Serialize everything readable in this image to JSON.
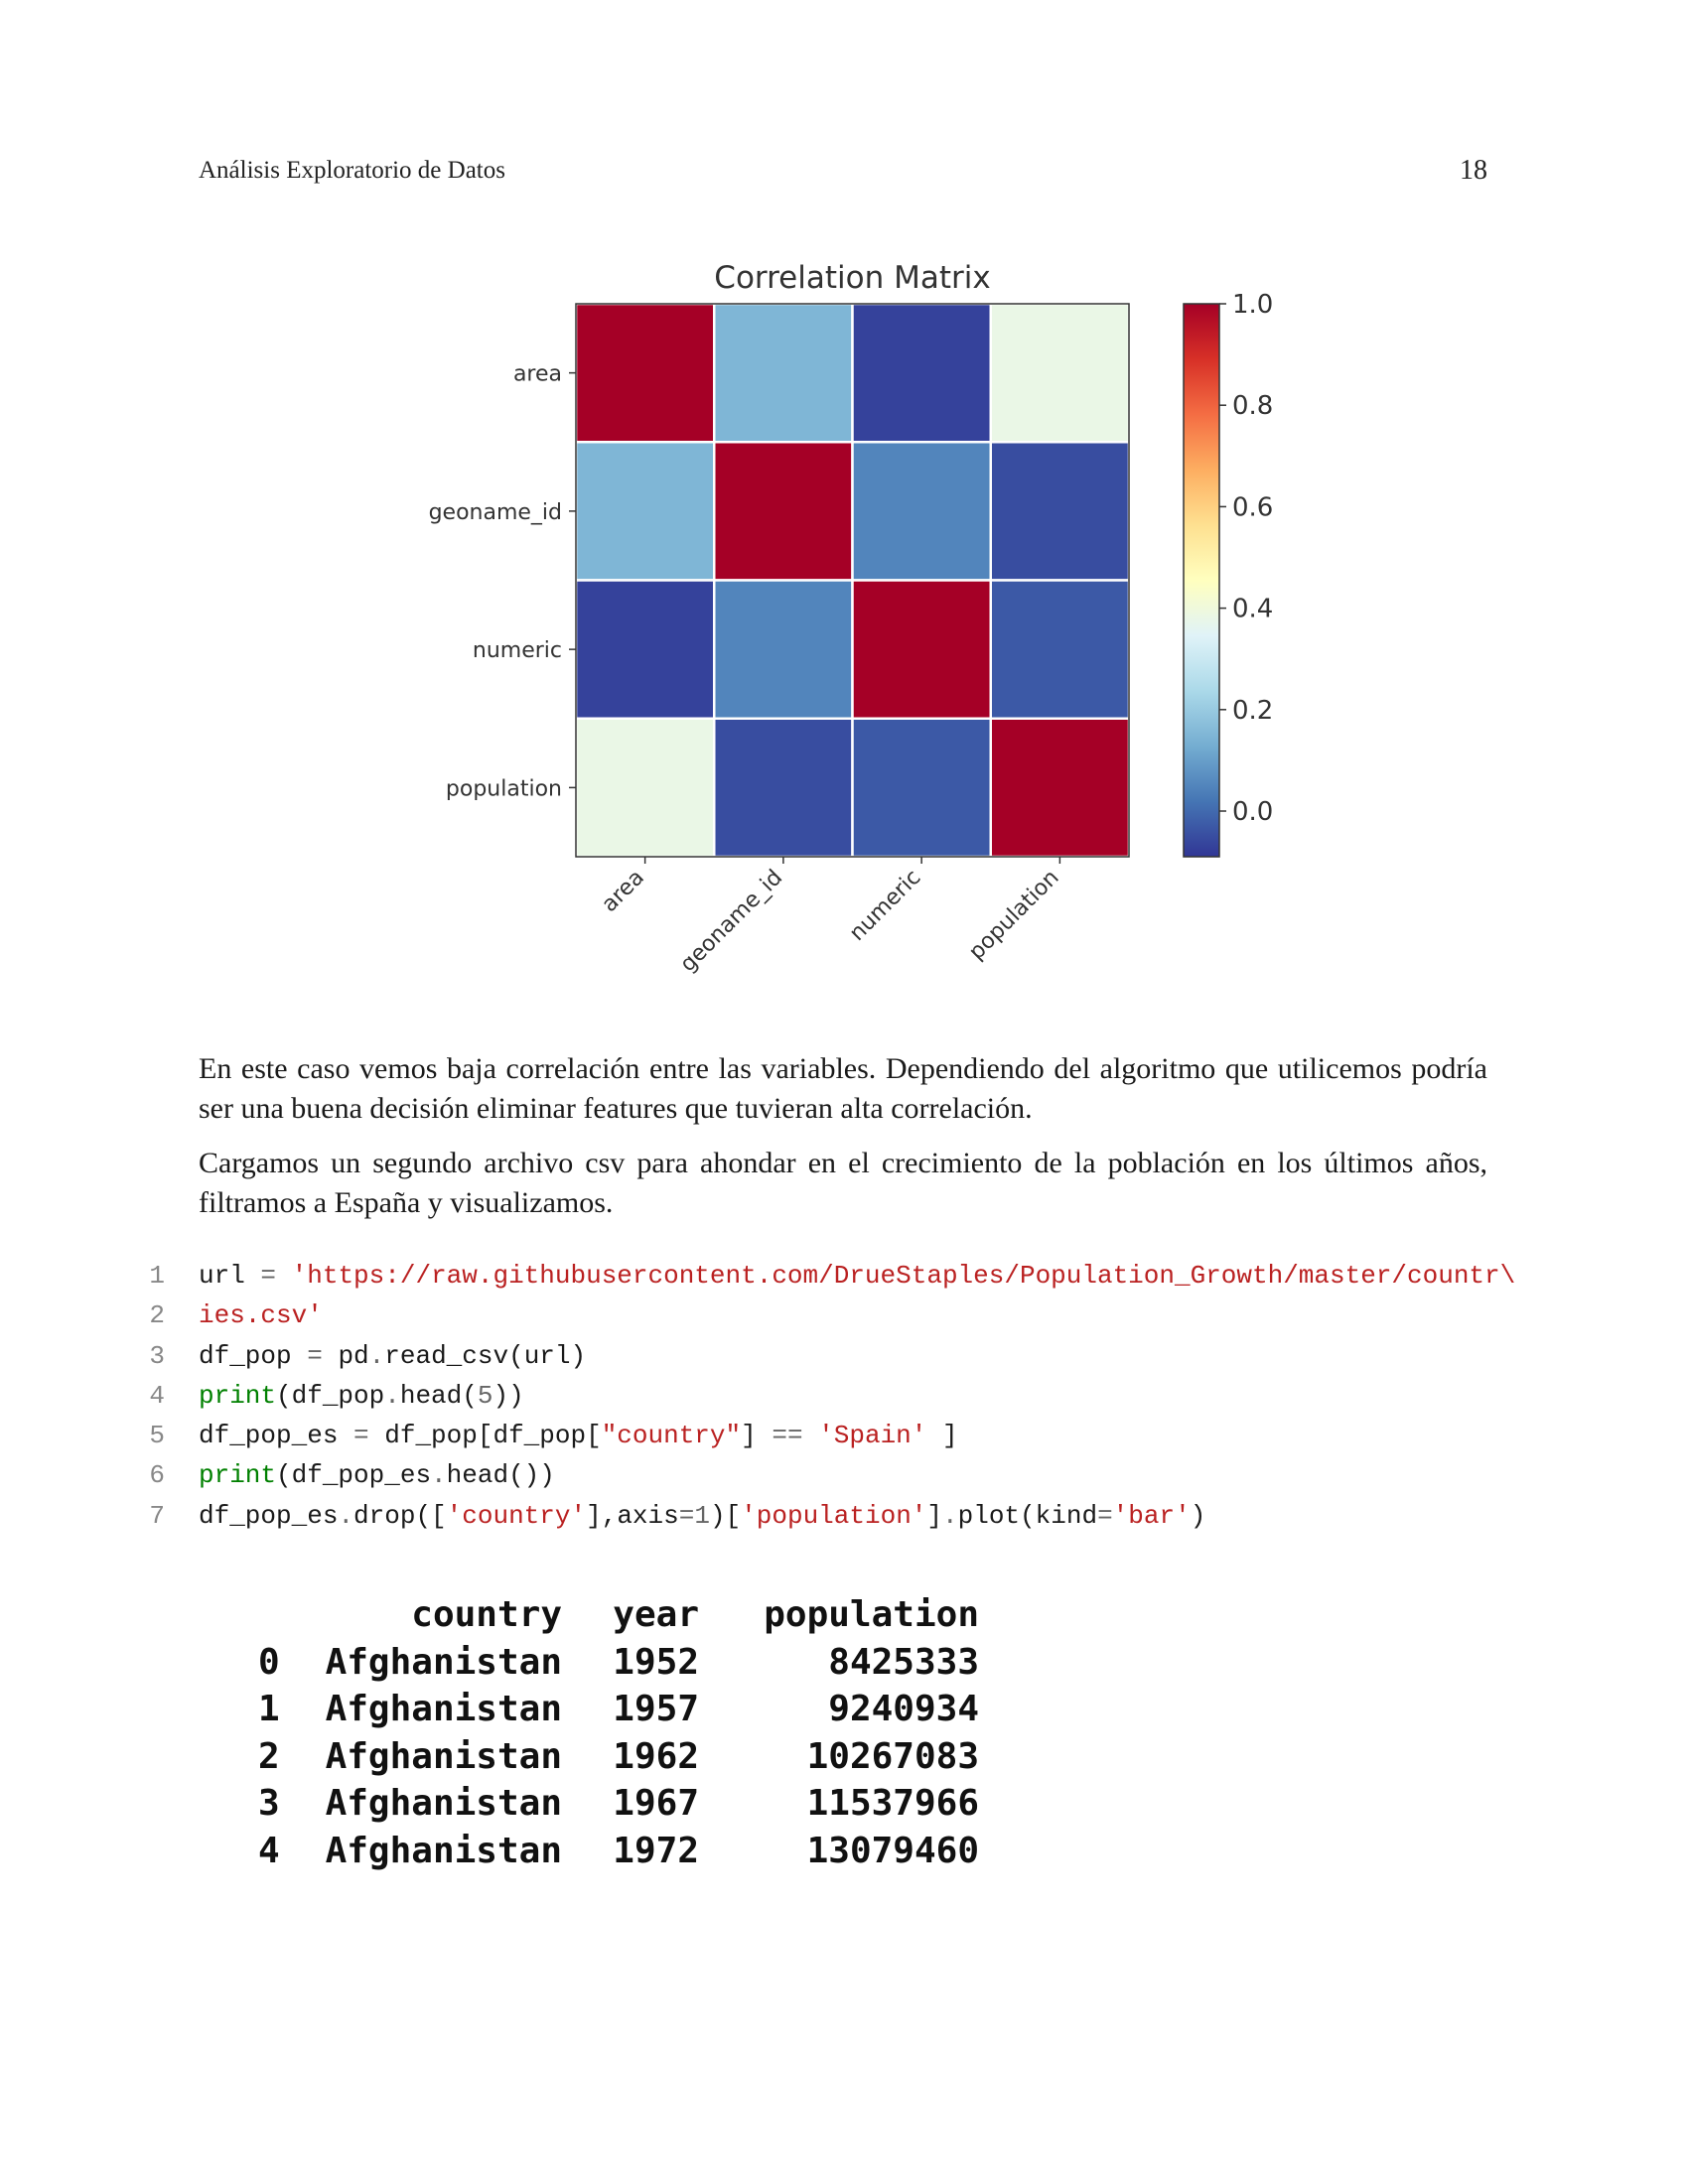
{
  "header": {
    "title": "Análisis Exploratorio de Datos",
    "page_number": "18"
  },
  "chart_data": {
    "type": "heatmap",
    "title": "Correlation Matrix",
    "rows": [
      "area",
      "geoname_id",
      "numeric",
      "population"
    ],
    "columns": [
      "area",
      "geoname_id",
      "numeric",
      "population"
    ],
    "values": [
      [
        1.0,
        0.15,
        -0.07,
        0.38
      ],
      [
        0.15,
        1.0,
        0.05,
        -0.05
      ],
      [
        -0.07,
        0.05,
        1.0,
        -0.03
      ],
      [
        0.38,
        -0.05,
        -0.03,
        1.0
      ]
    ],
    "colormap": "RdYlBu_r",
    "colorbar": {
      "min": -0.09,
      "max": 1.0,
      "ticks": [
        "1.0",
        "0.8",
        "0.6",
        "0.4",
        "0.2",
        "0.0"
      ]
    },
    "grid": true
  },
  "paragraphs": {
    "p1": "En este caso vemos baja correlación entre las variables. Dependiendo del algoritmo que utilicemos podría ser una buena decisión eliminar features que tuvieran alta correlación.",
    "p2": "Cargamos un segundo archivo csv para ahondar en el crecimiento de la población en los últimos años, filtramos a España y visualizamos."
  },
  "code": {
    "line_numbers": [
      "1",
      "2",
      "3",
      "4",
      "5",
      "6",
      "7"
    ],
    "l1": {
      "a": "url ",
      "b": "= ",
      "c": "'https://raw.githubusercontent.com/DrueStaples/Population_Growth/master/countr\\"
    },
    "l2": {
      "a": "ies.csv'"
    },
    "l3": {
      "a": "df_pop ",
      "b": "= ",
      "c": "pd",
      "d": ".",
      "e": "read_csv(url)"
    },
    "l4": {
      "a": "print",
      "b": "(df_pop",
      "c": ".",
      "d": "head(",
      "e": "5",
      "f": "))"
    },
    "l5": {
      "a": "df_pop_es ",
      "b": "= ",
      "c": "df_pop[df_pop[",
      "d": "\"country\"",
      "e": "] ",
      "f": "==",
      "g": " ",
      "h": "'Spain'",
      "i": " ]"
    },
    "l6": {
      "a": "print",
      "b": "(df_pop_es",
      "c": ".",
      "d": "head())"
    },
    "l7": {
      "a": "df_pop_es",
      "b": ".",
      "c": "drop([",
      "d": "'country'",
      "e": "],axis",
      "f": "=",
      "g": "1",
      "h": ")[",
      "i": "'population'",
      "j": "]",
      "k": ".",
      "l": "plot(kind",
      "m": "=",
      "n": "'bar'",
      "o": ")"
    }
  },
  "output_table": {
    "columns": [
      "country",
      "year",
      "population"
    ],
    "rows": [
      {
        "idx": "0",
        "country": "Afghanistan",
        "year": "1952",
        "population": "8425333"
      },
      {
        "idx": "1",
        "country": "Afghanistan",
        "year": "1957",
        "population": "9240934"
      },
      {
        "idx": "2",
        "country": "Afghanistan",
        "year": "1962",
        "population": "10267083"
      },
      {
        "idx": "3",
        "country": "Afghanistan",
        "year": "1967",
        "population": "11537966"
      },
      {
        "idx": "4",
        "country": "Afghanistan",
        "year": "1972",
        "population": "13079460"
      }
    ]
  }
}
